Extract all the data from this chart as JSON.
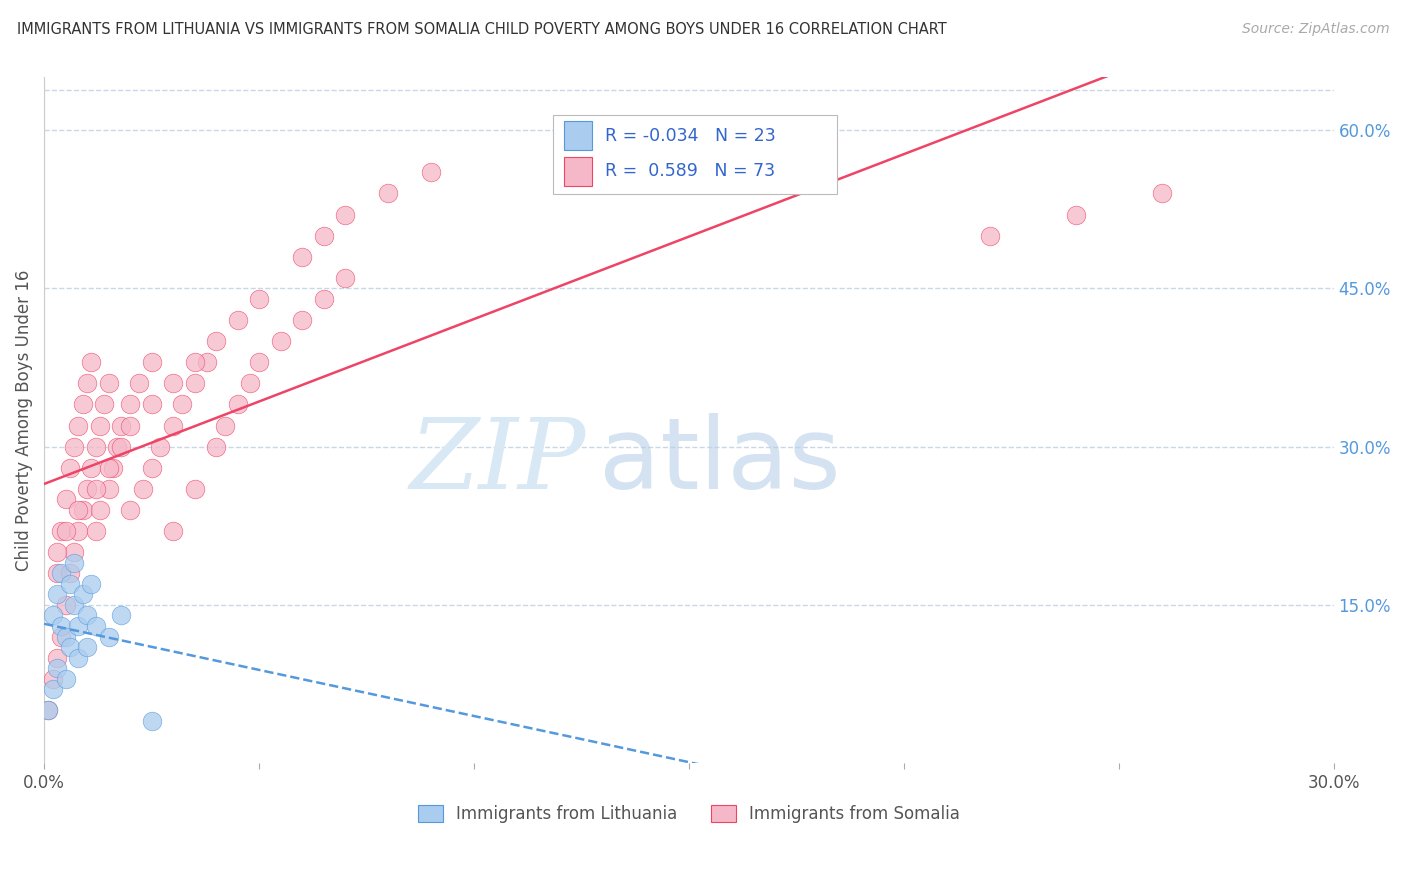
{
  "title": "IMMIGRANTS FROM LITHUANIA VS IMMIGRANTS FROM SOMALIA CHILD POVERTY AMONG BOYS UNDER 16 CORRELATION CHART",
  "source": "Source: ZipAtlas.com",
  "ylabel": "Child Poverty Among Boys Under 16",
  "xlim": [
    0.0,
    0.3
  ],
  "ylim": [
    0.0,
    0.65
  ],
  "watermark_zip": "ZIP",
  "watermark_atlas": "atlas",
  "legend_R1": "-0.034",
  "legend_N1": "23",
  "legend_R2": "0.589",
  "legend_N2": "73",
  "color_lithuania": "#aaccee",
  "color_somalia": "#f5b8c8",
  "color_trend_lithuania": "#5599dd",
  "color_trend_somalia": "#ee4466",
  "background_color": "#ffffff",
  "grid_color": "#c8d8e8",
  "label_lithuania": "Immigrants from Lithuania",
  "label_somalia": "Immigrants from Somalia",
  "lith_x": [
    0.001,
    0.002,
    0.002,
    0.003,
    0.003,
    0.004,
    0.004,
    0.005,
    0.005,
    0.006,
    0.006,
    0.007,
    0.007,
    0.008,
    0.008,
    0.009,
    0.01,
    0.01,
    0.011,
    0.012,
    0.015,
    0.018,
    0.025
  ],
  "lith_y": [
    0.05,
    0.14,
    0.07,
    0.16,
    0.09,
    0.13,
    0.18,
    0.12,
    0.08,
    0.17,
    0.11,
    0.15,
    0.19,
    0.13,
    0.1,
    0.16,
    0.14,
    0.11,
    0.17,
    0.13,
    0.12,
    0.14,
    0.04
  ],
  "som_x": [
    0.001,
    0.002,
    0.003,
    0.003,
    0.004,
    0.004,
    0.005,
    0.005,
    0.006,
    0.006,
    0.007,
    0.007,
    0.008,
    0.008,
    0.009,
    0.009,
    0.01,
    0.01,
    0.011,
    0.011,
    0.012,
    0.012,
    0.013,
    0.013,
    0.014,
    0.015,
    0.015,
    0.016,
    0.017,
    0.018,
    0.02,
    0.02,
    0.022,
    0.023,
    0.025,
    0.025,
    0.027,
    0.03,
    0.03,
    0.032,
    0.035,
    0.035,
    0.038,
    0.04,
    0.042,
    0.045,
    0.048,
    0.05,
    0.055,
    0.06,
    0.065,
    0.07,
    0.003,
    0.005,
    0.008,
    0.012,
    0.015,
    0.018,
    0.02,
    0.025,
    0.03,
    0.035,
    0.04,
    0.045,
    0.05,
    0.06,
    0.065,
    0.07,
    0.08,
    0.09,
    0.22,
    0.24,
    0.26
  ],
  "som_y": [
    0.05,
    0.08,
    0.1,
    0.18,
    0.12,
    0.22,
    0.15,
    0.25,
    0.18,
    0.28,
    0.2,
    0.3,
    0.22,
    0.32,
    0.24,
    0.34,
    0.26,
    0.36,
    0.28,
    0.38,
    0.3,
    0.22,
    0.32,
    0.24,
    0.34,
    0.26,
    0.36,
    0.28,
    0.3,
    0.32,
    0.34,
    0.24,
    0.36,
    0.26,
    0.38,
    0.28,
    0.3,
    0.32,
    0.22,
    0.34,
    0.36,
    0.26,
    0.38,
    0.3,
    0.32,
    0.34,
    0.36,
    0.38,
    0.4,
    0.42,
    0.44,
    0.46,
    0.2,
    0.22,
    0.24,
    0.26,
    0.28,
    0.3,
    0.32,
    0.34,
    0.36,
    0.38,
    0.4,
    0.42,
    0.44,
    0.48,
    0.5,
    0.52,
    0.54,
    0.56,
    0.5,
    0.52,
    0.54
  ]
}
